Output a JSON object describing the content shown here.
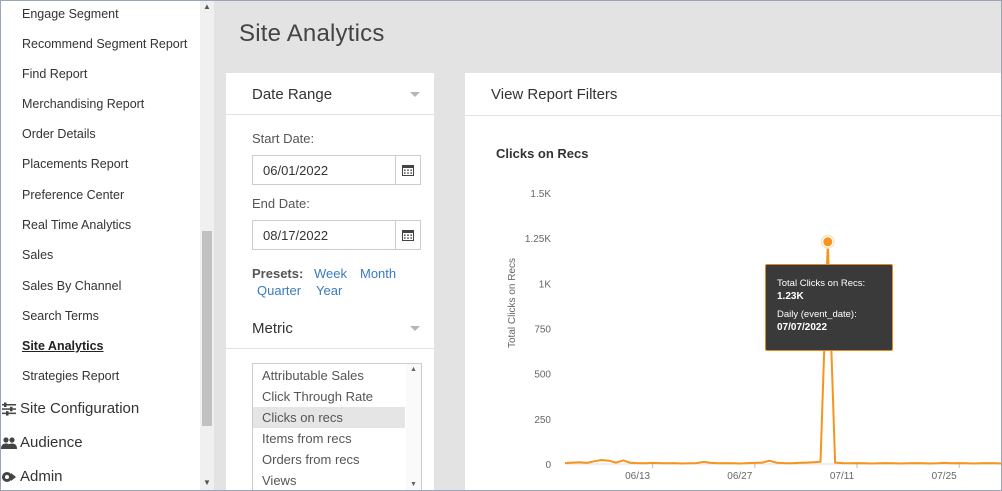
{
  "sidebar": {
    "items": [
      {
        "label": "Engage Segment",
        "active": false
      },
      {
        "label": "Recommend Segment Report",
        "active": false
      },
      {
        "label": "Find Report",
        "active": false
      },
      {
        "label": "Merchandising Report",
        "active": false
      },
      {
        "label": "Order Details",
        "active": false
      },
      {
        "label": "Placements Report",
        "active": false
      },
      {
        "label": "Preference Center",
        "active": false
      },
      {
        "label": "Real Time Analytics",
        "active": false
      },
      {
        "label": "Sales",
        "active": false
      },
      {
        "label": "Sales By Channel",
        "active": false
      },
      {
        "label": "Search Terms",
        "active": false
      },
      {
        "label": "Site Analytics",
        "active": true
      },
      {
        "label": "Strategies Report",
        "active": false
      }
    ],
    "sections": [
      {
        "label": "Site Configuration",
        "icon": "sliders-icon"
      },
      {
        "label": "Audience",
        "icon": "users-icon"
      },
      {
        "label": "Admin",
        "icon": "admin-icon"
      }
    ]
  },
  "page": {
    "title": "Site Analytics"
  },
  "filters": {
    "date_range_label": "Date Range",
    "start_label": "Start Date:",
    "start_value": "06/01/2022",
    "end_label": "End Date:",
    "end_value": "08/17/2022",
    "presets_label": "Presets:",
    "presets": [
      "Week",
      "Month",
      "Quarter",
      "Year"
    ],
    "metric_label": "Metric",
    "metrics": [
      "Attributable Sales",
      "Click Through Rate",
      "Clicks on recs",
      "Items from recs",
      "Orders from recs",
      "Views"
    ],
    "selected_metric": "Clicks on recs"
  },
  "report": {
    "header": "View Report Filters",
    "chart_title": "Clicks on Recs"
  },
  "tooltip": {
    "line1": "Total Clicks on Recs:",
    "value1": "1.23K",
    "line2": "Daily (event_date):",
    "value2": "07/07/2022"
  },
  "colors": {
    "accent": "#f7941d",
    "link": "#3a7bbf"
  },
  "chart_data": {
    "type": "line",
    "ylabel": "Total Clicks on Recs",
    "xlabel": "",
    "ylim": [
      0,
      1500
    ],
    "yticks": [
      "0",
      "250",
      "500",
      "750",
      "1K",
      "1.25K",
      "1.5K"
    ],
    "ytick_values": [
      0,
      250,
      500,
      750,
      1000,
      1250,
      1500
    ],
    "xticks": [
      "06/13",
      "06/27",
      "07/11",
      "07/25"
    ],
    "xtick_dates": [
      "2022-06-13",
      "2022-06-27",
      "2022-07-11",
      "2022-07-25"
    ],
    "x_range": [
      "2022-06-01",
      "2022-07-31"
    ],
    "series": [
      {
        "values": [
          {
            "x": "2022-06-01",
            "y": 5
          },
          {
            "x": "2022-06-02",
            "y": 8
          },
          {
            "x": "2022-06-03",
            "y": 10
          },
          {
            "x": "2022-06-04",
            "y": 6
          },
          {
            "x": "2022-06-05",
            "y": 15
          },
          {
            "x": "2022-06-06",
            "y": 22
          },
          {
            "x": "2022-06-07",
            "y": 18
          },
          {
            "x": "2022-06-08",
            "y": 8
          },
          {
            "x": "2022-06-09",
            "y": 20
          },
          {
            "x": "2022-06-10",
            "y": 6
          },
          {
            "x": "2022-06-11",
            "y": 5
          },
          {
            "x": "2022-06-12",
            "y": 4
          },
          {
            "x": "2022-06-13",
            "y": 6
          },
          {
            "x": "2022-06-14",
            "y": 5
          },
          {
            "x": "2022-06-15",
            "y": 4
          },
          {
            "x": "2022-06-16",
            "y": 5
          },
          {
            "x": "2022-06-17",
            "y": 3
          },
          {
            "x": "2022-06-18",
            "y": 4
          },
          {
            "x": "2022-06-19",
            "y": 5
          },
          {
            "x": "2022-06-20",
            "y": 12
          },
          {
            "x": "2022-06-21",
            "y": 6
          },
          {
            "x": "2022-06-22",
            "y": 4
          },
          {
            "x": "2022-06-23",
            "y": 5
          },
          {
            "x": "2022-06-24",
            "y": 4
          },
          {
            "x": "2022-06-25",
            "y": 3
          },
          {
            "x": "2022-06-26",
            "y": 5
          },
          {
            "x": "2022-06-27",
            "y": 6
          },
          {
            "x": "2022-06-28",
            "y": 8
          },
          {
            "x": "2022-06-29",
            "y": 18
          },
          {
            "x": "2022-06-30",
            "y": 7
          },
          {
            "x": "2022-07-01",
            "y": 5
          },
          {
            "x": "2022-07-02",
            "y": 4
          },
          {
            "x": "2022-07-03",
            "y": 6
          },
          {
            "x": "2022-07-04",
            "y": 8
          },
          {
            "x": "2022-07-05",
            "y": 10
          },
          {
            "x": "2022-07-06",
            "y": 12
          },
          {
            "x": "2022-07-07",
            "y": 1230
          },
          {
            "x": "2022-07-08",
            "y": 8
          },
          {
            "x": "2022-07-09",
            "y": 5
          },
          {
            "x": "2022-07-10",
            "y": 4
          },
          {
            "x": "2022-07-11",
            "y": 5
          },
          {
            "x": "2022-07-12",
            "y": 4
          },
          {
            "x": "2022-07-13",
            "y": 3
          },
          {
            "x": "2022-07-14",
            "y": 4
          },
          {
            "x": "2022-07-15",
            "y": 5
          },
          {
            "x": "2022-07-16",
            "y": 4
          },
          {
            "x": "2022-07-17",
            "y": 3
          },
          {
            "x": "2022-07-18",
            "y": 4
          },
          {
            "x": "2022-07-19",
            "y": 5
          },
          {
            "x": "2022-07-20",
            "y": 4
          },
          {
            "x": "2022-07-21",
            "y": 3
          },
          {
            "x": "2022-07-22",
            "y": 4
          },
          {
            "x": "2022-07-23",
            "y": 6
          },
          {
            "x": "2022-07-24",
            "y": 4
          },
          {
            "x": "2022-07-25",
            "y": 5
          },
          {
            "x": "2022-07-26",
            "y": 4
          },
          {
            "x": "2022-07-27",
            "y": 3
          },
          {
            "x": "2022-07-28",
            "y": 4
          },
          {
            "x": "2022-07-29",
            "y": 5
          },
          {
            "x": "2022-07-30",
            "y": 4
          },
          {
            "x": "2022-07-31",
            "y": 3
          }
        ]
      }
    ],
    "highlight": {
      "x": "2022-07-07",
      "y": 1230
    }
  }
}
